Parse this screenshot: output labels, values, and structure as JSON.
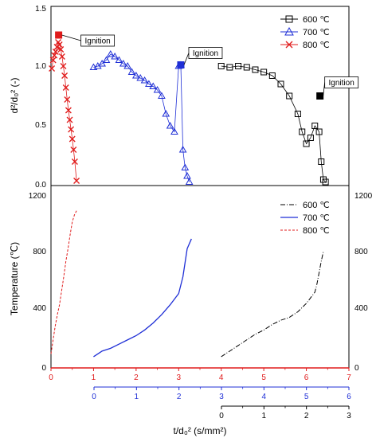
{
  "colors": {
    "c600": "#000000",
    "c700": "#1f2fd6",
    "c800": "#e01b1b",
    "axis": "#000000"
  },
  "chart_data": [
    {
      "type": "scatter",
      "panel": "top",
      "ylabel": "d²/d₀² (-)",
      "ylim": [
        0,
        1.5
      ],
      "y_ticks": [
        "0.0",
        "0.5",
        "1.0",
        "1.5"
      ],
      "x_axis": "t/d₀² (s/mm²) on the 800 ℃ scale (0–7)",
      "legend_position": "top-right",
      "legend": [
        {
          "label": "600 ℃",
          "marker": "square",
          "color_key": "c600"
        },
        {
          "label": "700 ℃",
          "marker": "triangle",
          "color_key": "c700"
        },
        {
          "label": "800 ℃",
          "marker": "x",
          "color_key": "c800"
        }
      ],
      "annotations": [
        {
          "text": "Ignition",
          "series": "800 ℃",
          "x": 0.18,
          "y": 1.26
        },
        {
          "text": "Ignition",
          "series": "700 ℃",
          "x": 3.05,
          "y": 1.01
        },
        {
          "text": "Ignition",
          "series": "600 ℃",
          "x": 6.32,
          "y": 0.75
        }
      ],
      "series": [
        {
          "name": "800 ℃",
          "color_key": "c800",
          "x": [
            0.02,
            0.05,
            0.08,
            0.11,
            0.14,
            0.17,
            0.2,
            0.23,
            0.26,
            0.29,
            0.32,
            0.35,
            0.38,
            0.41,
            0.44,
            0.47,
            0.5,
            0.53,
            0.56,
            0.6
          ],
          "y": [
            0.98,
            1.05,
            1.09,
            1.12,
            1.16,
            1.2,
            1.18,
            1.14,
            1.08,
            1.0,
            0.92,
            0.82,
            0.72,
            0.63,
            0.55,
            0.47,
            0.39,
            0.3,
            0.2,
            0.04
          ]
        },
        {
          "name": "700 ℃",
          "color_key": "c700",
          "x": [
            1.0,
            1.1,
            1.2,
            1.3,
            1.4,
            1.5,
            1.6,
            1.7,
            1.8,
            1.9,
            2.0,
            2.1,
            2.2,
            2.3,
            2.4,
            2.5,
            2.6,
            2.7,
            2.8,
            2.9,
            3.0,
            3.05,
            3.1,
            3.15,
            3.2,
            3.25
          ],
          "y": [
            0.99,
            1.0,
            1.02,
            1.05,
            1.1,
            1.08,
            1.05,
            1.02,
            1.0,
            0.95,
            0.92,
            0.9,
            0.88,
            0.85,
            0.83,
            0.8,
            0.75,
            0.6,
            0.5,
            0.45,
            1.0,
            1.01,
            0.3,
            0.15,
            0.08,
            0.03
          ]
        },
        {
          "name": "600 ℃",
          "color_key": "c600",
          "x": [
            4.0,
            4.2,
            4.4,
            4.6,
            4.8,
            5.0,
            5.2,
            5.4,
            5.6,
            5.8,
            5.9,
            6.0,
            6.1,
            6.2,
            6.3,
            6.35,
            6.4,
            6.45
          ],
          "y": [
            1.0,
            0.99,
            1.0,
            0.99,
            0.97,
            0.95,
            0.92,
            0.85,
            0.75,
            0.6,
            0.45,
            0.35,
            0.4,
            0.5,
            0.45,
            0.2,
            0.05,
            0.03
          ]
        }
      ]
    },
    {
      "type": "line",
      "panel": "bottom",
      "ylabel": "Temperature (℃)",
      "ylim": [
        0,
        1300
      ],
      "y_ticks": [
        "0",
        "400",
        "800",
        "1200"
      ],
      "xlabel": "t/d₀² (s/mm²)",
      "legend_position": "top-right",
      "legend": [
        {
          "label": "600 ℃",
          "dash": "dash-dot",
          "color_key": "c600"
        },
        {
          "label": "700 ℃",
          "dash": "solid",
          "color_key": "c700"
        },
        {
          "label": "800 ℃",
          "dash": "dashed",
          "color_key": "c800"
        }
      ],
      "series": [
        {
          "name": "800 ℃",
          "color_key": "c800",
          "x": [
            0.0,
            0.05,
            0.1,
            0.15,
            0.2,
            0.25,
            0.3,
            0.35,
            0.4,
            0.45,
            0.5,
            0.55,
            0.6
          ],
          "y": [
            100,
            200,
            300,
            380,
            450,
            550,
            650,
            760,
            850,
            950,
            1040,
            1090,
            1120
          ]
        },
        {
          "name": "700 ℃",
          "color_key": "c700",
          "x": [
            1.0,
            1.2,
            1.4,
            1.6,
            1.8,
            2.0,
            2.2,
            2.4,
            2.6,
            2.8,
            3.0,
            3.1,
            3.15,
            3.2,
            3.3
          ],
          "y": [
            80,
            120,
            140,
            170,
            200,
            230,
            270,
            320,
            380,
            450,
            530,
            650,
            750,
            850,
            920
          ]
        },
        {
          "name": "600 ℃",
          "color_key": "c600",
          "x": [
            4.0,
            4.2,
            4.4,
            4.6,
            4.8,
            5.0,
            5.2,
            5.4,
            5.6,
            5.8,
            6.0,
            6.1,
            6.2,
            6.25,
            6.3,
            6.35,
            6.4
          ],
          "y": [
            80,
            120,
            160,
            200,
            240,
            270,
            310,
            340,
            360,
            400,
            460,
            500,
            540,
            600,
            680,
            760,
            830
          ]
        }
      ],
      "x_axes": [
        {
          "color_key": "c800",
          "ticks": [
            "0",
            "1",
            "2",
            "3",
            "4",
            "5",
            "6",
            "7"
          ]
        },
        {
          "color_key": "c700",
          "ticks": [
            "0",
            "1",
            "2",
            "3",
            "4",
            "5",
            "6"
          ]
        },
        {
          "color_key": "c600",
          "ticks": [
            "0",
            "1",
            "2",
            "3"
          ]
        }
      ],
      "right_y_ticks": [
        "0",
        "400",
        "800",
        "1200"
      ]
    }
  ]
}
